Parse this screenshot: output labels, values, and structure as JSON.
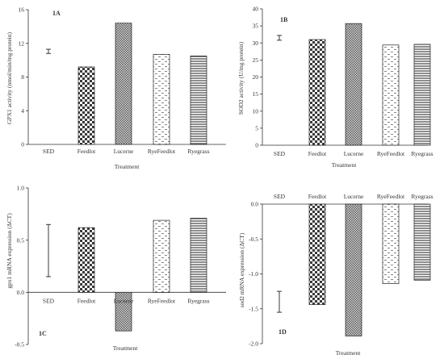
{
  "chart_data": [
    {
      "panel": "1A",
      "type": "bar",
      "categories": [
        "SED",
        "Feedlot",
        "Lucerne",
        "RyeFeedlot",
        "Ryegrass"
      ],
      "values": [
        null,
        9.2,
        14.4,
        10.7,
        10.5
      ],
      "patterns": [
        "none",
        "checker",
        "dense-checker",
        "dashes",
        "hlines"
      ],
      "sed_errorbar": [
        10.8,
        11.3
      ],
      "ylabel": "GPX1 activity (nmol/min/mg protein)",
      "xlabel": "Treatment",
      "ylim": [
        0,
        16
      ],
      "yticks": [
        "0",
        "4",
        "8",
        "12",
        "16"
      ],
      "ytick_values": [
        0,
        4,
        8,
        12,
        16
      ]
    },
    {
      "panel": "1B",
      "type": "bar",
      "categories": [
        "SED",
        "Feedlot",
        "Lucerne",
        "RyeFeedlot",
        "Ryegrass"
      ],
      "values": [
        null,
        31,
        35.7,
        29.4,
        29.6
      ],
      "patterns": [
        "none",
        "checker",
        "dense-checker",
        "dashes",
        "hlines"
      ],
      "sed_errorbar": [
        30.8,
        32.2
      ],
      "ylabel": "SOD2 activity (U/mg protein)",
      "xlabel": "Treatment",
      "ylim": [
        0,
        40
      ],
      "yticks": [
        "0",
        "5",
        "10",
        "15",
        "20",
        "25",
        "30",
        "35",
        "40"
      ],
      "ytick_values": [
        0,
        5,
        10,
        15,
        20,
        25,
        30,
        35,
        40
      ]
    },
    {
      "panel": "1C",
      "type": "bar",
      "categories": [
        "SED",
        "Feedlot",
        "Lucerne",
        "RyeFeedlot",
        "Ryegrass"
      ],
      "values": [
        null,
        0.62,
        -0.37,
        0.69,
        0.71
      ],
      "patterns": [
        "none",
        "checker",
        "dense-checker",
        "dashes",
        "hlines"
      ],
      "sed_errorbar": [
        0.15,
        0.65
      ],
      "ylabel": "gpx1 mRNA expression (ΔCT)",
      "xlabel": "Treatment",
      "ylim": [
        -0.5,
        1
      ],
      "yticks": [
        "-0.5",
        "0.0",
        "0.5",
        "1.0"
      ],
      "ytick_values": [
        -0.5,
        0,
        0.5,
        1
      ]
    },
    {
      "panel": "1D",
      "type": "bar",
      "categories": [
        "SED",
        "Feedlot",
        "Lucerne",
        "RyeFeedlot",
        "Ryegrass"
      ],
      "values": [
        null,
        -1.44,
        -1.89,
        -1.14,
        -1.09
      ],
      "patterns": [
        "none",
        "checker",
        "dense-checker",
        "dashes",
        "hlines"
      ],
      "sed_errorbar": [
        -1.55,
        -1.25
      ],
      "ylabel": "sod2 mRNA expression (ΔCT)",
      "xlabel": "Treatment",
      "ylim": [
        -2,
        0
      ],
      "yticks": [
        "-2.0",
        "-1.5",
        "-1.0",
        "-0.5",
        "0.0"
      ],
      "ytick_values": [
        -2,
        -1.5,
        -1,
        -0.5,
        0
      ]
    }
  ]
}
